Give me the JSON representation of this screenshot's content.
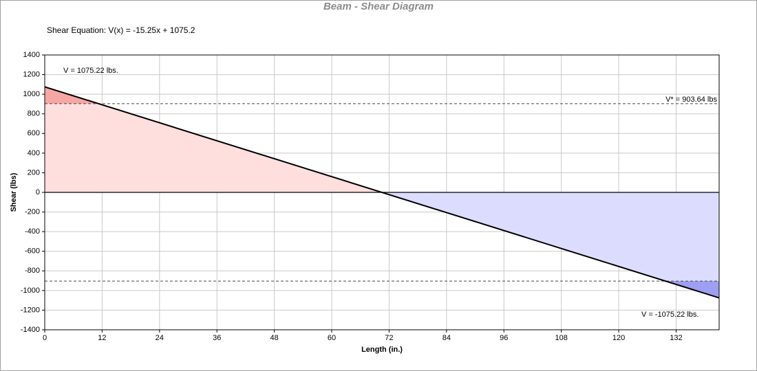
{
  "chart_data": {
    "type": "line",
    "title": "Beam - Shear Diagram",
    "subtitle": "Shear Equation:  V(x) = -15.25x + 1075.2",
    "x_label": "Length (in.)",
    "y_label": "Shear (lbs)",
    "x": [
      0,
      141
    ],
    "series": [
      {
        "color": "#000000",
        "values": [
          1075.22,
          -1075.22
        ],
        "positive_fill": "#ffdede",
        "negative_fill": "#dcdcfe",
        "positive_excess_fill": "#f7a6a6",
        "negative_excess_fill": "#9e9ef2"
      }
    ],
    "reference_lines": [
      903.64,
      -903.64
    ],
    "annotations": [
      "V = 1075.22 lbs.",
      "V* = 903.64 lbs",
      "V = -1075.22 lbs."
    ],
    "xlim": [
      0,
      141
    ],
    "ylim": [
      -1400,
      1400
    ],
    "xticks": [
      0,
      12,
      24,
      36,
      48,
      60,
      72,
      84,
      96,
      108,
      120,
      132
    ],
    "yticks": [
      -1400,
      -1200,
      -1000,
      -800,
      -600,
      -400,
      -200,
      0,
      200,
      400,
      600,
      800,
      1000,
      1200,
      1400
    ],
    "grid": true
  }
}
